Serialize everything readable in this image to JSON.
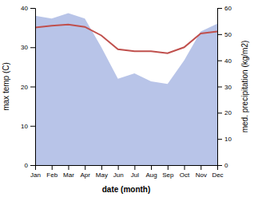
{
  "chart_data": {
    "type": "line",
    "xlabel": "date (month)",
    "ylabel": "max temp (C)",
    "y2label": "med. precipitation (kg/m2)",
    "categories": [
      "Jan",
      "Feb",
      "Mar",
      "Apr",
      "May",
      "Jun",
      "Jul",
      "Aug",
      "Sep",
      "Oct",
      "Nov",
      "Dec"
    ],
    "series": [
      {
        "type": "area",
        "axis": "y2",
        "color": "#b8c4e8",
        "values": [
          57,
          56,
          58,
          56,
          45,
          33,
          35,
          32,
          31,
          40,
          51,
          54
        ]
      },
      {
        "type": "line",
        "color": "#c0504d",
        "values": [
          35,
          35.5,
          35.8,
          35.2,
          33,
          29.5,
          29,
          29,
          28.5,
          30,
          33.5,
          34
        ]
      }
    ],
    "ylim": [
      0,
      40
    ],
    "yticks": [
      0,
      10,
      20,
      30,
      40
    ],
    "y2lim": [
      0,
      60
    ],
    "y2ticks": [
      0,
      10,
      20,
      30,
      40,
      50,
      60
    ],
    "grid": false
  }
}
